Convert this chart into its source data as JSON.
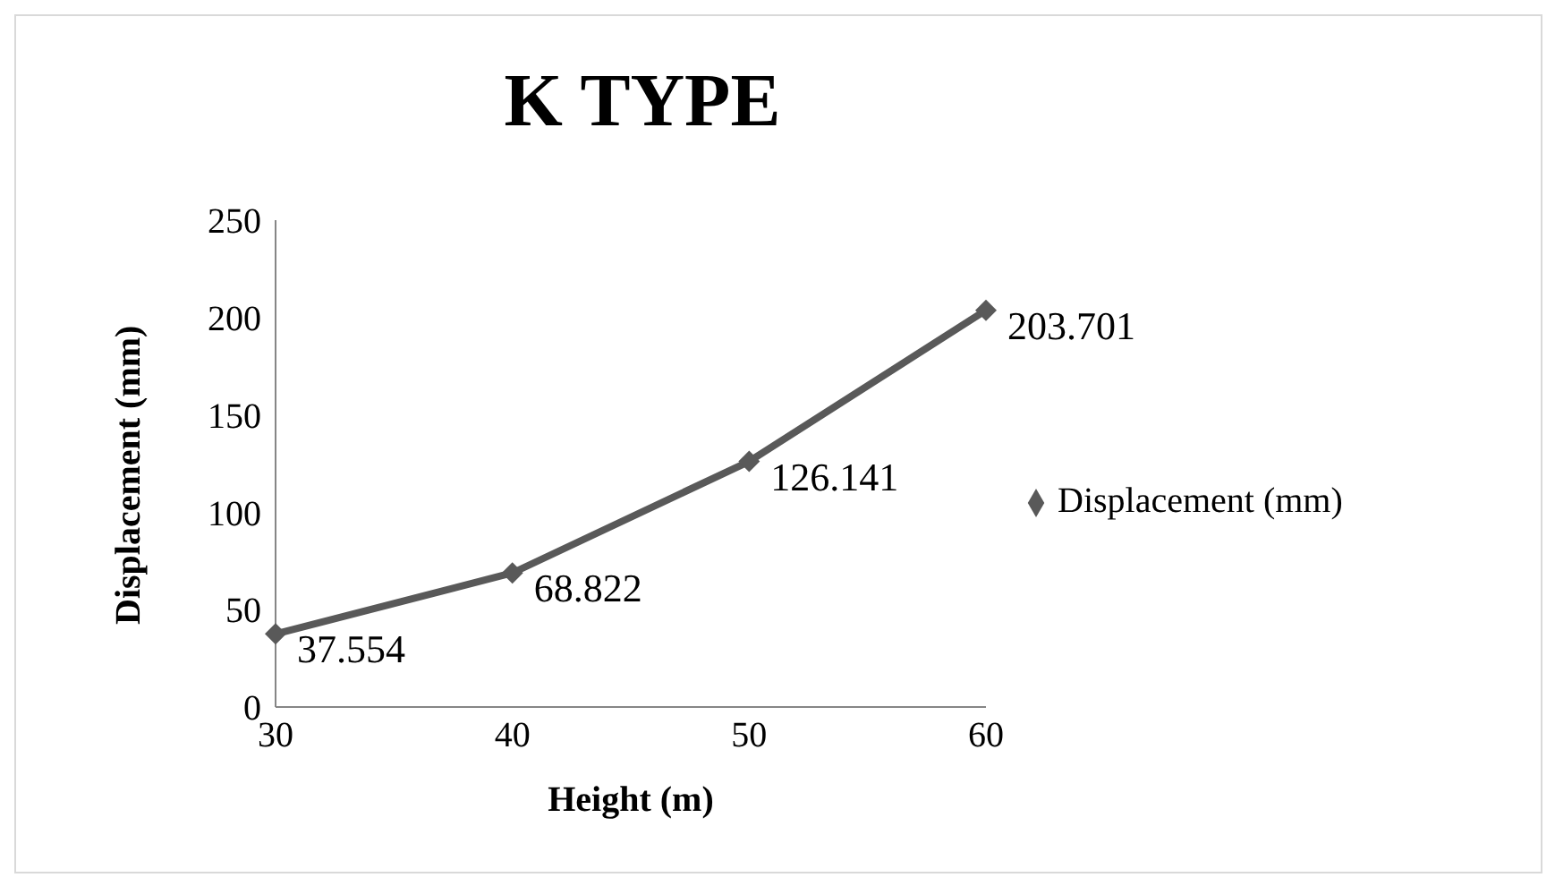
{
  "chart_data": {
    "type": "line",
    "title": "K TYPE",
    "xlabel": "Height (m)",
    "ylabel": "Displacement (mm)",
    "categories": [
      "30",
      "40",
      "50",
      "60"
    ],
    "series": [
      {
        "name": "Displacement (mm)",
        "color": "#595959",
        "values": [
          37.554,
          68.822,
          126.141,
          203.701
        ]
      }
    ],
    "ylim": [
      0,
      250
    ],
    "yticks": [
      0,
      50,
      100,
      150,
      200,
      250
    ],
    "grid": false,
    "legend": "right",
    "marker": "diamond",
    "line_style": "solid",
    "data_labels": true
  }
}
